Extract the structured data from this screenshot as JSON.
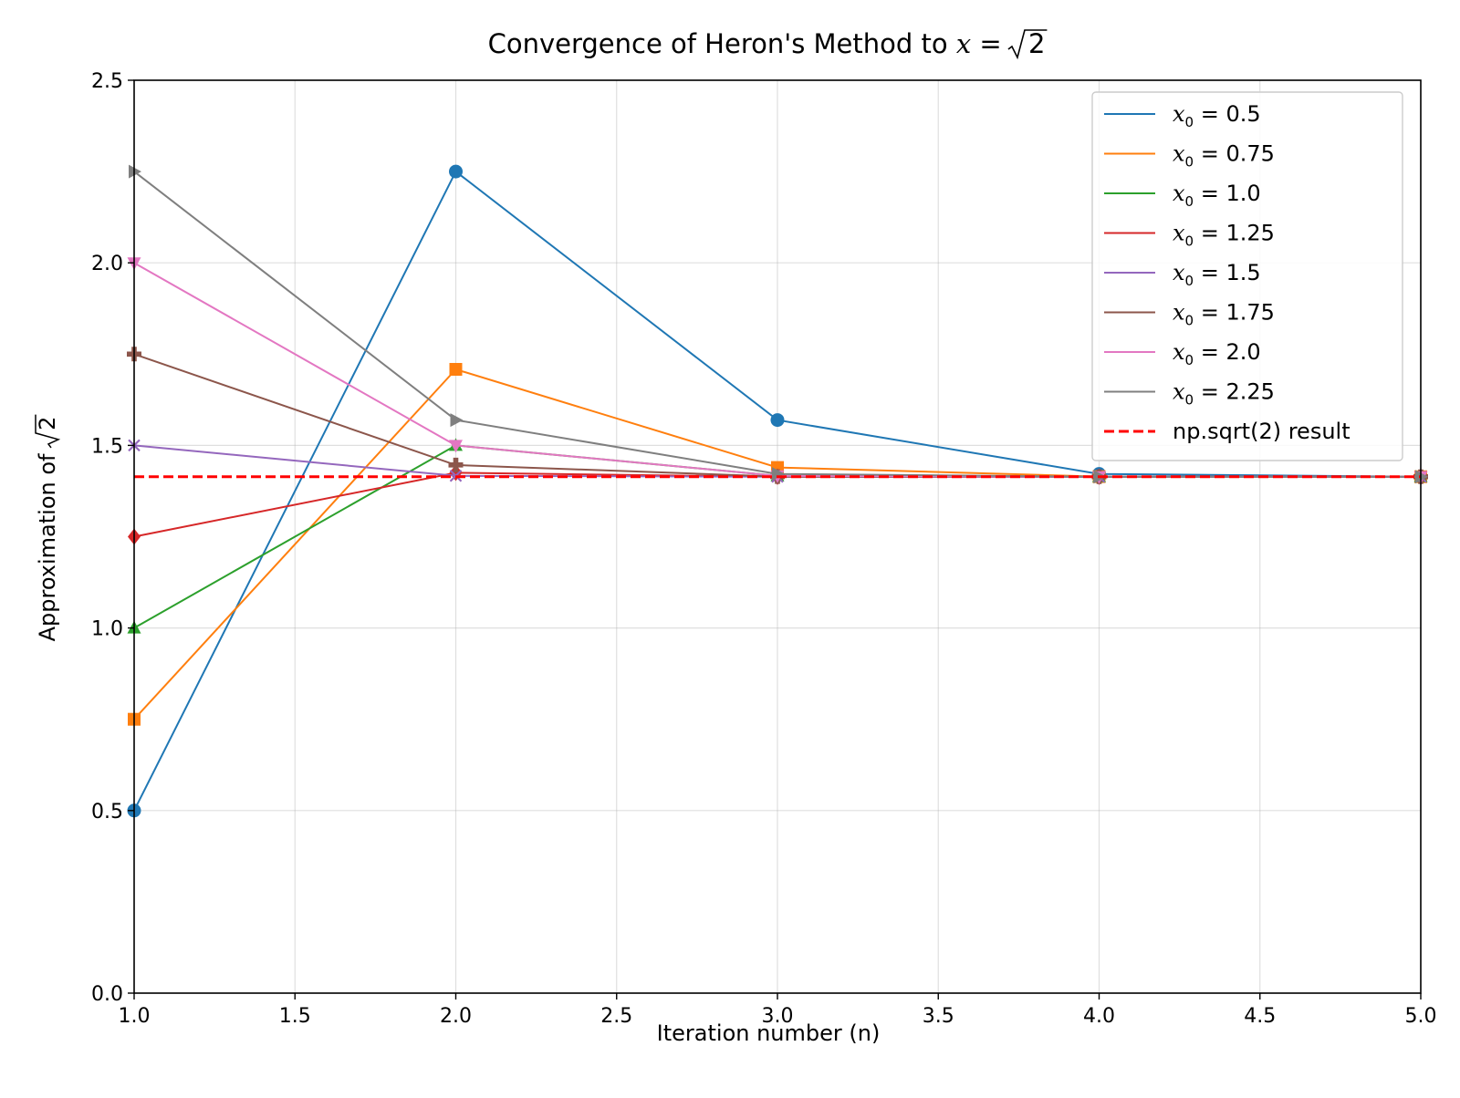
{
  "chart_data": {
    "type": "line",
    "title": {
      "prefix": "Convergence of Heron's Method to ",
      "math_var": "x",
      "math_eq": " = ",
      "sqrt_radicand": "2"
    },
    "xlabel": "Iteration number (n)",
    "ylabel": {
      "prefix": "Approximation of ",
      "sqrt_radicand": "2"
    },
    "xlim": [
      1.0,
      5.0
    ],
    "ylim": [
      0.0,
      2.5
    ],
    "x_ticks": [
      1.0,
      1.5,
      2.0,
      2.5,
      3.0,
      3.5,
      4.0,
      4.5,
      5.0
    ],
    "x_tick_labels": [
      "1.0",
      "1.5",
      "2.0",
      "2.5",
      "3.0",
      "3.5",
      "4.0",
      "4.5",
      "5.0"
    ],
    "y_ticks": [
      0.0,
      0.5,
      1.0,
      1.5,
      2.0,
      2.5
    ],
    "y_tick_labels": [
      "0.0",
      "0.5",
      "1.0",
      "1.5",
      "2.0",
      "2.5"
    ],
    "grid": true,
    "legend_position": "top-right",
    "x": [
      1,
      2,
      3,
      4,
      5
    ],
    "series": [
      {
        "name": "x₀ = 0.5",
        "legend_sym": "x",
        "legend_sub": "0",
        "legend_value": " = 0.5",
        "color": "#1f77b4",
        "marker": "circle",
        "values": [
          0.5,
          2.25,
          1.5694,
          1.4219,
          1.4142
        ]
      },
      {
        "name": "x₀ = 0.75",
        "legend_sym": "x",
        "legend_sub": "0",
        "legend_value": " = 0.75",
        "color": "#ff7f0e",
        "marker": "square",
        "values": [
          0.75,
          1.7083,
          1.4395,
          1.4145,
          1.4142
        ]
      },
      {
        "name": "x₀ = 1.0",
        "legend_sym": "x",
        "legend_sub": "0",
        "legend_value": " = 1.0",
        "color": "#2ca02c",
        "marker": "triangle-up",
        "values": [
          1.0,
          1.5,
          1.4167,
          1.4142,
          1.4142
        ]
      },
      {
        "name": "x₀ = 1.25",
        "legend_sym": "x",
        "legend_sub": "0",
        "legend_value": " = 1.25",
        "color": "#d62728",
        "marker": "diamond",
        "values": [
          1.25,
          1.425,
          1.4142,
          1.4142,
          1.4142
        ]
      },
      {
        "name": "x₀ = 1.5",
        "legend_sym": "x",
        "legend_sub": "0",
        "legend_value": " = 1.5",
        "color": "#9467bd",
        "marker": "x",
        "values": [
          1.5,
          1.4167,
          1.4142,
          1.4142,
          1.4142
        ]
      },
      {
        "name": "x₀ = 1.75",
        "legend_sym": "x",
        "legend_sub": "0",
        "legend_value": " = 1.75",
        "color": "#8c564b",
        "marker": "plus",
        "values": [
          1.75,
          1.4464,
          1.4146,
          1.4142,
          1.4142
        ]
      },
      {
        "name": "x₀ = 2.0",
        "legend_sym": "x",
        "legend_sub": "0",
        "legend_value": " = 2.0",
        "color": "#e377c2",
        "marker": "triangle-down",
        "values": [
          2.0,
          1.5,
          1.4167,
          1.4142,
          1.4142
        ]
      },
      {
        "name": "x₀ = 2.25",
        "legend_sym": "x",
        "legend_sub": "0",
        "legend_value": " = 2.25",
        "color": "#7f7f7f",
        "marker": "triangle-right",
        "values": [
          2.25,
          1.5694,
          1.4219,
          1.4142,
          1.4142
        ]
      }
    ],
    "reference_line": {
      "name": "np.sqrt(2) result",
      "value": 1.4142,
      "color": "#ff0000",
      "style": "dashed"
    }
  }
}
